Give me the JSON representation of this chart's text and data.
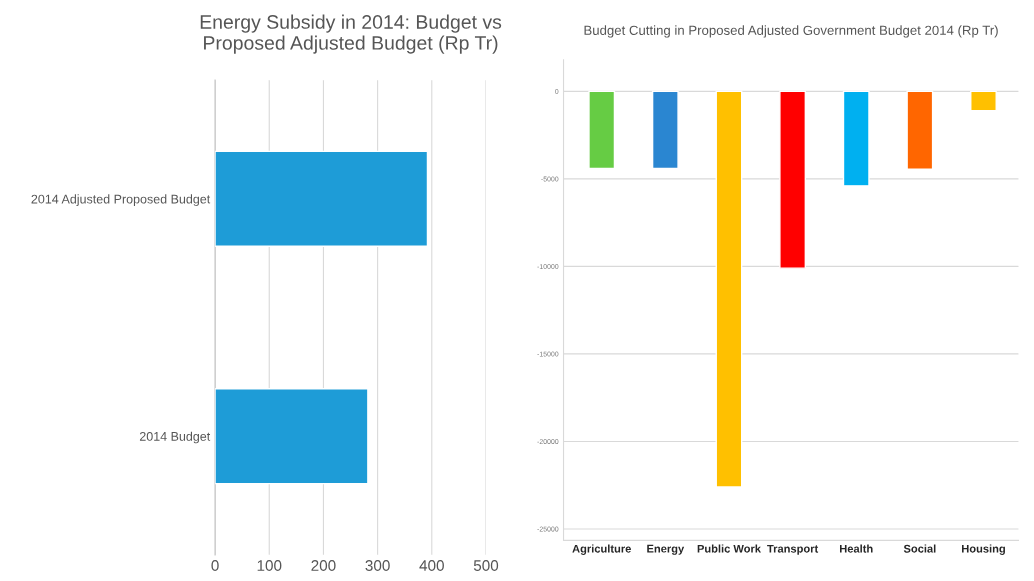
{
  "chart_data": [
    {
      "type": "bar",
      "title": "Energy Subsidy in 2014: Budget vs\nProposed Adjusted Budget (Rp Tr)",
      "orientation": "horizontal",
      "categories": [
        "2014 Adjusted Proposed Budget",
        "2014 Budget"
      ],
      "values": [
        392,
        282
      ],
      "color": "#1e9cd7",
      "xlim": [
        0,
        500
      ],
      "xticks": [
        0,
        100,
        200,
        300,
        400,
        500
      ],
      "grid": "x"
    },
    {
      "type": "bar",
      "title": "Budget Cutting in Proposed Adjusted Government Budget 2014 (Rp Tr)",
      "categories": [
        "Agriculture",
        "Energy",
        "Public Work",
        "Transport",
        "Health",
        "Social",
        "Housing"
      ],
      "values": [
        -4400,
        -4400,
        -22600,
        -10100,
        -5400,
        -4450,
        -1100
      ],
      "colors": [
        "#66cc44",
        "#2a86d1",
        "#ffc000",
        "#ff0000",
        "#00b0f0",
        "#ff6600",
        "#ffc000"
      ],
      "ylim": [
        -25650,
        1800
      ],
      "yticks": [
        0,
        -5000,
        -10000,
        -15000,
        -20000,
        -25000
      ],
      "grid": "y"
    }
  ]
}
